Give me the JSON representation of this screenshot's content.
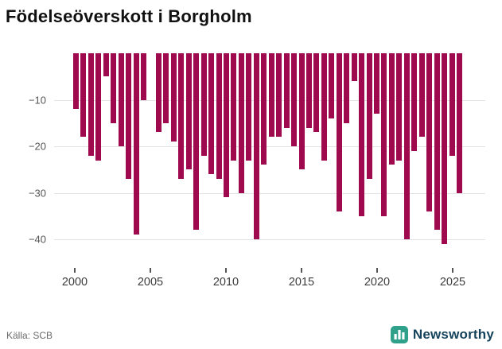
{
  "title": "Födelseöverskott i Borgholm",
  "source": "Källa: SCB",
  "branding": {
    "name": "Newsworthy",
    "icon": "bar-chart-logo-icon",
    "icon_color": "#2fa18b",
    "text_color": "#16435c"
  },
  "colors": {
    "bar": "#9f0a4e",
    "grid": "#e3e3e3",
    "axis_text": "#565656",
    "title_text": "#111111",
    "source_text": "#6b6b6b"
  },
  "chart_data": {
    "type": "bar",
    "title": "Födelseöverskott i Borgholm",
    "xlabel": "",
    "ylabel": "",
    "period": "half-year",
    "x": [
      "2000 H1",
      "2000 H2",
      "2001 H1",
      "2001 H2",
      "2002 H1",
      "2002 H2",
      "2003 H1",
      "2003 H2",
      "2004 H1",
      "2004 H2",
      "2005 H1",
      "2005 H2",
      "2006 H1",
      "2006 H2",
      "2007 H1",
      "2007 H2",
      "2008 H1",
      "2008 H2",
      "2009 H1",
      "2009 H2",
      "2010 H1",
      "2010 H2",
      "2011 H1",
      "2011 H2",
      "2012 H1",
      "2012 H2",
      "2013 H1",
      "2013 H2",
      "2014 H1",
      "2014 H2",
      "2015 H1",
      "2015 H2",
      "2016 H1",
      "2016 H2",
      "2017 H1",
      "2017 H2",
      "2018 H1",
      "2018 H2",
      "2019 H1",
      "2019 H2",
      "2020 H1",
      "2020 H2",
      "2021 H1",
      "2021 H2",
      "2022 H1",
      "2022 H2",
      "2023 H1",
      "2023 H2",
      "2024 H1",
      "2024 H2",
      "2025 H1",
      "2025 H2"
    ],
    "values": [
      -12,
      -18,
      -22,
      -23,
      -5,
      -15,
      -20,
      -27,
      -39,
      -10,
      0,
      -17,
      -15,
      -19,
      -27,
      -25,
      -38,
      -22,
      -26,
      -27,
      -31,
      -23,
      -30,
      -23,
      -40,
      -24,
      -18,
      -18,
      -16,
      -20,
      -25,
      -16,
      -17,
      -23,
      -14,
      -34,
      -15,
      -6,
      -35,
      -27,
      -13,
      -35,
      -24,
      -23,
      -40,
      -21,
      -18,
      -34,
      -38,
      -41,
      -22,
      -30
    ],
    "ylim": [
      -43,
      0
    ],
    "yticks": [
      -10,
      -20,
      -30,
      -40
    ],
    "ytick_labels": [
      "−10",
      "−20",
      "−30",
      "−40"
    ],
    "xtick_years": [
      "2000",
      "2005",
      "2010",
      "2015",
      "2020",
      "2025"
    ],
    "grid": true,
    "legend": "none"
  }
}
